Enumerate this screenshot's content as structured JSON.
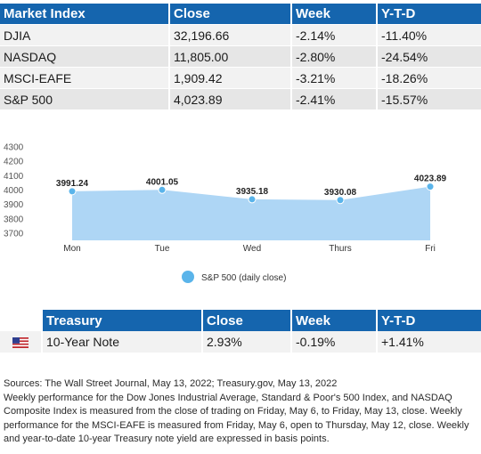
{
  "market_table": {
    "headers": [
      "Market Index",
      "Close",
      "Week",
      "Y-T-D"
    ],
    "rows": [
      {
        "name": "DJIA",
        "close": "32,196.66",
        "week": "-2.14%",
        "ytd": "-11.40%"
      },
      {
        "name": "NASDAQ",
        "close": "11,805.00",
        "week": "-2.80%",
        "ytd": "-24.54%"
      },
      {
        "name": "MSCI-EAFE",
        "close": "1,909.42",
        "week": "-3.21%",
        "ytd": "-18.26%"
      },
      {
        "name": "S&P 500",
        "close": "4,023.89",
        "week": "-2.41%",
        "ytd": "-15.57%"
      }
    ]
  },
  "chart_data": {
    "type": "area",
    "categories": [
      "Mon",
      "Tue",
      "Wed",
      "Thurs",
      "Fri"
    ],
    "series": [
      {
        "name": "S&P 500 (daily close)",
        "values": [
          3991.24,
          4001.05,
          3935.18,
          3930.08,
          4023.89
        ],
        "labels": [
          "3991.24",
          "4001.05",
          "3935.18",
          "3930.08",
          "4023.89"
        ]
      }
    ],
    "yticks": [
      3700,
      3800,
      3900,
      4000,
      4100,
      4200,
      4300
    ],
    "ylim": [
      3650,
      4300
    ],
    "legend_position": "bottom",
    "colors": {
      "fill": "#aed6f5",
      "point": "#5ab4ea"
    }
  },
  "treasury_table": {
    "headers": [
      "",
      "Treasury",
      "Close",
      "Week",
      "Y-T-D"
    ],
    "row": {
      "flag_icon": "us-flag-icon",
      "name": "10-Year Note",
      "close": "2.93%",
      "week": "-0.19%",
      "ytd": "+1.41%"
    }
  },
  "notes": [
    "Sources: The Wall Street Journal, May 13, 2022; Treasury.gov, May 13, 2022",
    "Weekly performance for the Dow Jones Industrial Average, Standard & Poor's 500 Index, and NASDAQ Composite Index is measured from the close of trading on Friday, May 6, to Friday, May 13, close. Weekly performance for the MSCI-EAFE is measured from Friday, May 6, open to Thursday, May 12, close. Weekly and year-to-date 10-year Treasury note yield are expressed in basis points."
  ]
}
